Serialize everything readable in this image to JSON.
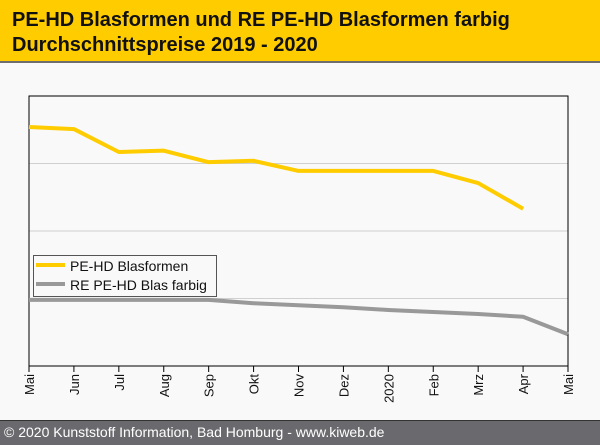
{
  "header": {
    "title_line1": "PE-HD Blasformen und RE PE-HD Blasformen farbig",
    "title_line2": "Durchschnittspreise 2019 - 2020"
  },
  "footer": {
    "text": "© 2020 Kunststoff Information, Bad Homburg - www.kiweb.de"
  },
  "chart_data": {
    "type": "line",
    "title": "PE-HD Blasformen und RE PE-HD Blasformen farbig Durchschnittspreise 2019 - 2020",
    "xlabel": "",
    "ylabel": "",
    "categories": [
      "Mai",
      "Jun",
      "Jul",
      "Aug",
      "Sep",
      "Okt",
      "Nov",
      "Dez",
      "2020",
      "Feb",
      "Mrz",
      "Apr",
      "Mai"
    ],
    "ylim": [
      0,
      4
    ],
    "y_gridlines": [
      1,
      2,
      3
    ],
    "grid": true,
    "legend_position": "center-left",
    "series": [
      {
        "name": "PE-HD Blasformen",
        "color": "#ffcc00",
        "values": [
          3.54,
          3.51,
          3.17,
          3.19,
          3.02,
          3.04,
          2.89,
          2.89,
          2.89,
          2.89,
          2.71,
          2.33,
          null
        ]
      },
      {
        "name": "RE PE-HD Blas farbig",
        "color": "#999999",
        "values": [
          0.98,
          0.98,
          0.98,
          0.98,
          0.98,
          0.93,
          0.9,
          0.87,
          0.83,
          0.8,
          0.77,
          0.73,
          0.47
        ]
      }
    ]
  }
}
